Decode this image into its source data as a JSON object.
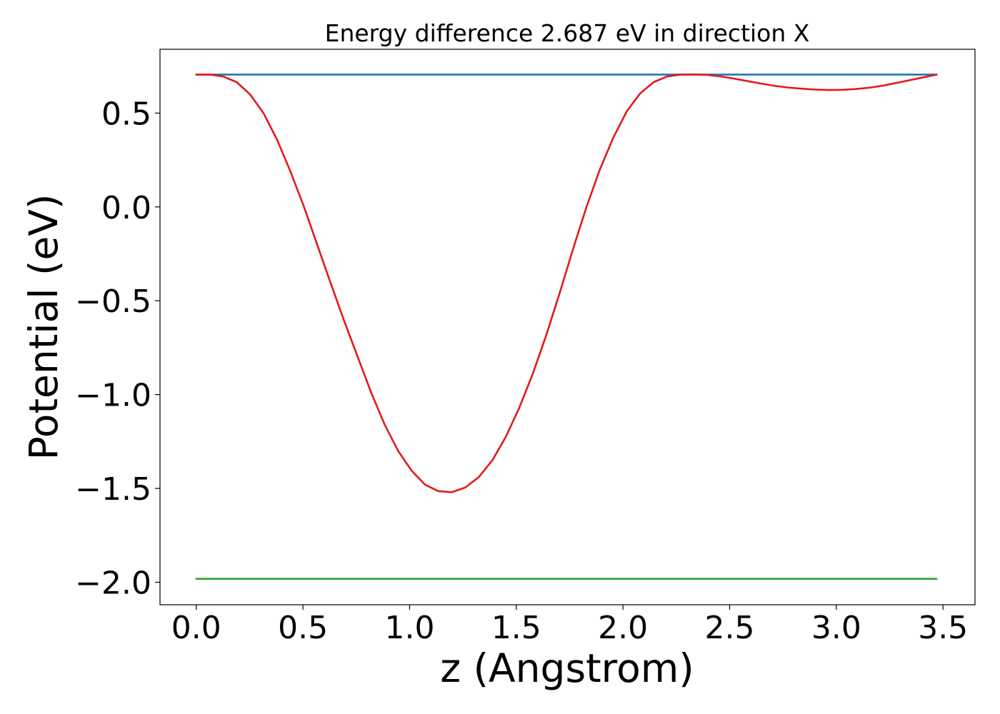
{
  "chart_data": {
    "type": "line",
    "title": "Energy difference 2.687 eV in direction X",
    "xlabel": "z (Angstrom)",
    "ylabel": "Potential (eV)",
    "xlim": [
      -0.17,
      3.65
    ],
    "ylim": [
      -2.12,
      0.84
    ],
    "xticks": [
      0.0,
      0.5,
      1.0,
      1.5,
      2.0,
      2.5,
      3.0,
      3.5
    ],
    "xtick_labels": [
      "0.0",
      "0.5",
      "1.0",
      "1.5",
      "2.0",
      "2.5",
      "3.0",
      "3.5"
    ],
    "yticks": [
      -2.0,
      -1.5,
      -1.0,
      -0.5,
      0.0,
      0.5
    ],
    "ytick_labels": [
      "−2.0",
      "−1.5",
      "−1.0",
      "−0.5",
      "0.0",
      "0.5"
    ],
    "grid": false,
    "series": [
      {
        "color": "#1f77b4",
        "x": [
          0.0,
          3.47
        ],
        "y": [
          0.705,
          0.705
        ]
      },
      {
        "color": "#2ca02c",
        "x": [
          0.0,
          3.47
        ],
        "y": [
          -1.982,
          -1.982
        ]
      },
      {
        "color": "#e31a1c",
        "x": [
          0.0,
          0.063,
          0.126,
          0.189,
          0.252,
          0.315,
          0.378,
          0.441,
          0.505,
          0.568,
          0.631,
          0.694,
          0.757,
          0.82,
          0.883,
          0.946,
          1.009,
          1.072,
          1.135,
          1.198,
          1.261,
          1.324,
          1.388,
          1.451,
          1.514,
          1.577,
          1.64,
          1.703,
          1.766,
          1.829,
          1.892,
          1.955,
          2.018,
          2.081,
          2.144,
          2.207,
          2.271,
          2.334,
          2.397,
          2.46,
          2.523,
          2.586,
          2.649,
          2.712,
          2.775,
          2.838,
          2.901,
          2.964,
          3.027,
          3.09,
          3.154,
          3.217,
          3.28,
          3.343,
          3.406,
          3.47
        ],
        "y": [
          0.705,
          0.705,
          0.695,
          0.665,
          0.6,
          0.5,
          0.36,
          0.19,
          0.0,
          -0.205,
          -0.41,
          -0.61,
          -0.8,
          -0.99,
          -1.16,
          -1.3,
          -1.405,
          -1.48,
          -1.515,
          -1.52,
          -1.495,
          -1.44,
          -1.35,
          -1.225,
          -1.07,
          -0.89,
          -0.685,
          -0.46,
          -0.225,
          0.0,
          0.2,
          0.37,
          0.51,
          0.605,
          0.665,
          0.695,
          0.705,
          0.706,
          0.703,
          0.695,
          0.683,
          0.67,
          0.657,
          0.645,
          0.636,
          0.63,
          0.625,
          0.623,
          0.624,
          0.628,
          0.635,
          0.646,
          0.66,
          0.675,
          0.69,
          0.705
        ]
      }
    ]
  }
}
